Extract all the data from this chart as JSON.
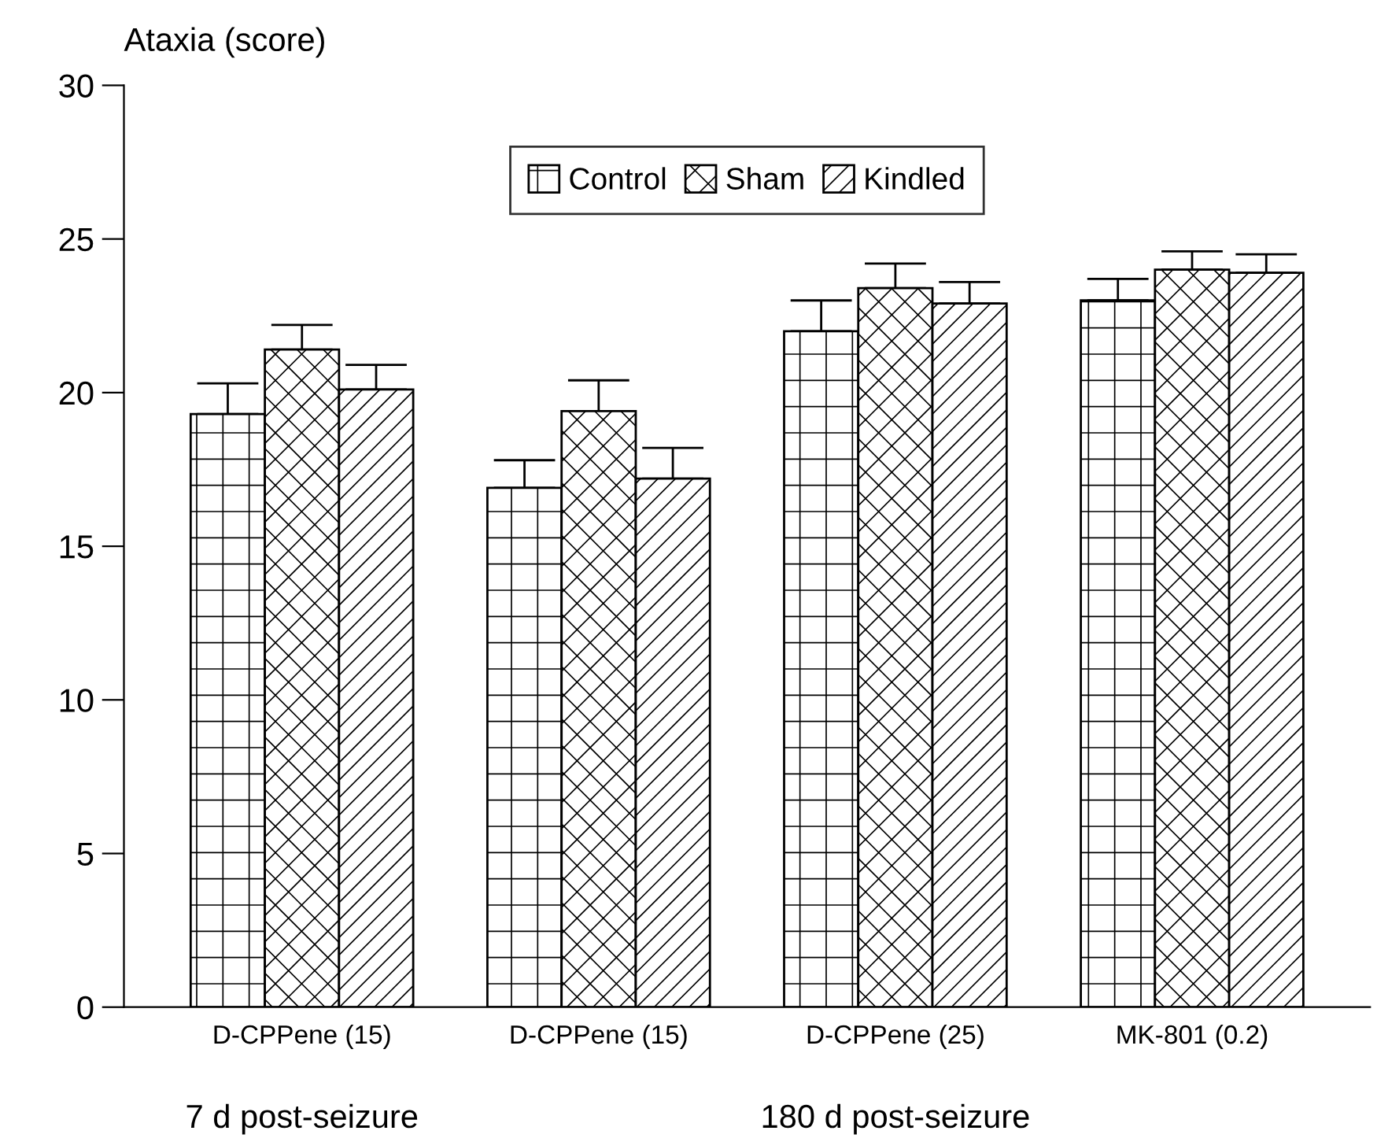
{
  "chart_data": {
    "type": "bar",
    "ylabel": "Ataxia (score)",
    "categories": [
      "D-CPPene (15)",
      "D-CPPene (15)",
      "D-CPPene (25)",
      "MK-801 (0.2)"
    ],
    "series": [
      {
        "name": "Control",
        "color": "#000000",
        "values": [
          19.3,
          16.9,
          22.0,
          23.0
        ],
        "errors": [
          [
            19.3,
            20.3
          ],
          [
            16.9,
            17.8
          ],
          [
            22.0,
            23.0
          ],
          [
            23.0,
            23.7
          ]
        ]
      },
      {
        "name": "Sham",
        "color": "#000000",
        "values": [
          21.4,
          19.4,
          23.4,
          24.0
        ],
        "errors": [
          [
            21.4,
            22.2
          ],
          [
            19.4,
            20.4
          ],
          [
            23.4,
            24.2
          ],
          [
            24.0,
            24.6
          ]
        ]
      },
      {
        "name": "Kindled",
        "color": "#000000",
        "values": [
          20.1,
          17.2,
          22.9,
          23.9
        ],
        "errors": [
          [
            20.1,
            20.9
          ],
          [
            17.2,
            18.2
          ],
          [
            22.9,
            23.6
          ],
          [
            23.9,
            24.5
          ]
        ]
      }
    ],
    "ylim": [
      0,
      30
    ],
    "yticks": [
      0,
      5,
      10,
      15,
      20,
      25,
      30
    ],
    "annotations": [
      "7 d post-seizure",
      "180 d post-seizure"
    ],
    "legend": "top",
    "grid": false
  }
}
